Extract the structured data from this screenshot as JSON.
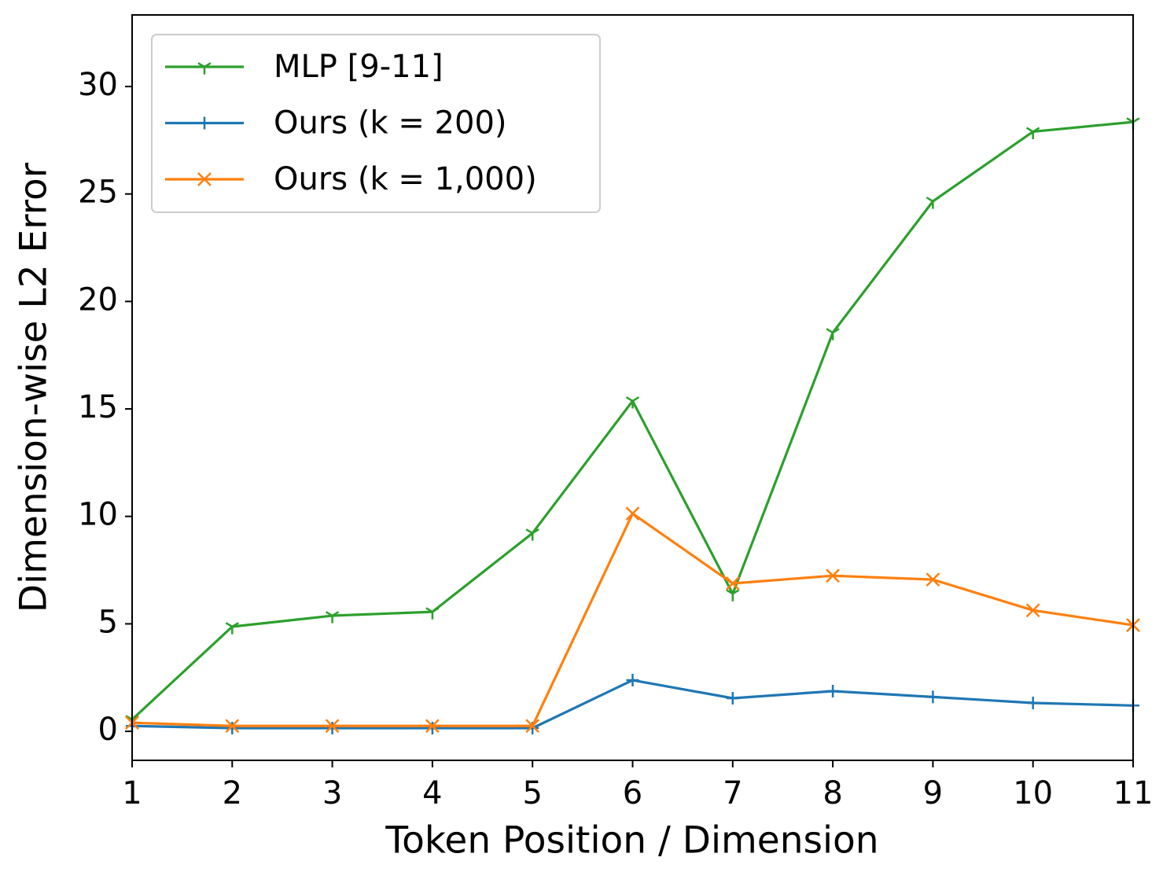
{
  "chart_data": {
    "type": "line",
    "xlabel": "Token Position / Dimension",
    "ylabel": "Dimension-wise L2 Error",
    "x": [
      1,
      2,
      3,
      4,
      5,
      6,
      7,
      8,
      9,
      10,
      11
    ],
    "series": [
      {
        "name": "MLP [9-11]",
        "color": "#2ca02c",
        "marker": "tri_down",
        "values": [
          0.55,
          4.87,
          5.38,
          5.56,
          9.22,
          15.37,
          6.4,
          18.55,
          24.66,
          27.9,
          28.35
        ]
      },
      {
        "name": "Ours (k = 200)",
        "color": "#1f77b4",
        "marker": "plus",
        "values": [
          0.25,
          0.15,
          0.15,
          0.15,
          0.15,
          2.38,
          1.54,
          1.87,
          1.6,
          1.32,
          1.2
        ]
      },
      {
        "name": "Ours (k = 1,000)",
        "color": "#ff7f0e",
        "marker": "x",
        "values": [
          0.4,
          0.25,
          0.25,
          0.25,
          0.25,
          10.13,
          6.88,
          7.24,
          7.06,
          5.63,
          4.94
        ]
      }
    ],
    "xlim": [
      1,
      11
    ],
    "xticks": [
      1,
      2,
      3,
      4,
      5,
      6,
      7,
      8,
      9,
      10,
      11
    ],
    "ylim": [
      -1.35,
      33.33
    ],
    "yticks": [
      0,
      5,
      10,
      15,
      20,
      25,
      30
    ],
    "legend": "upper left"
  }
}
